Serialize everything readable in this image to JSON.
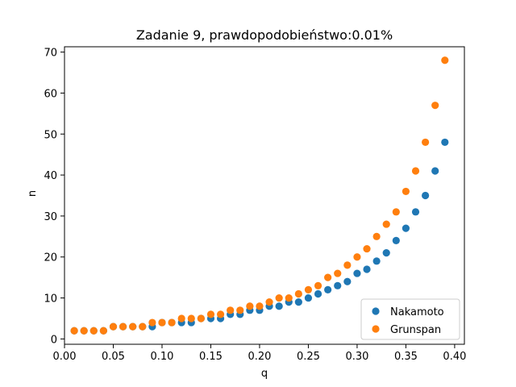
{
  "chart_data": {
    "type": "scatter",
    "title": "Zadanie 9, prawdopodobieństwo:0.01%",
    "xlabel": "q",
    "ylabel": "n",
    "xlim": [
      -0.0,
      0.41
    ],
    "ylim": [
      -1.3,
      71.3
    ],
    "xticks": [
      0.0,
      0.05,
      0.1,
      0.15,
      0.2,
      0.25,
      0.3,
      0.35,
      0.4
    ],
    "xtick_labels": [
      "0.00",
      "0.05",
      "0.10",
      "0.15",
      "0.20",
      "0.25",
      "0.30",
      "0.35",
      "0.40"
    ],
    "yticks": [
      0,
      10,
      20,
      30,
      40,
      50,
      60,
      70
    ],
    "ytick_labels": [
      "0",
      "10",
      "20",
      "30",
      "40",
      "50",
      "60",
      "70"
    ],
    "grid": false,
    "legend": "lower-right",
    "x": [
      0.01,
      0.02,
      0.03,
      0.04,
      0.05,
      0.06,
      0.07,
      0.08,
      0.09,
      0.1,
      0.11,
      0.12,
      0.13,
      0.14,
      0.15,
      0.16,
      0.17,
      0.18,
      0.19,
      0.2,
      0.21,
      0.22,
      0.23,
      0.24,
      0.25,
      0.26,
      0.27,
      0.28,
      0.29,
      0.3,
      0.31,
      0.32,
      0.33,
      0.34,
      0.35,
      0.36,
      0.37,
      0.38,
      0.39
    ],
    "series": [
      {
        "name": "Nakamoto",
        "color": "#1f77b4",
        "values": [
          2,
          2,
          2,
          2,
          3,
          3,
          3,
          3,
          3,
          4,
          4,
          4,
          4,
          5,
          5,
          5,
          6,
          6,
          7,
          7,
          8,
          8,
          9,
          9,
          10,
          11,
          12,
          13,
          14,
          16,
          17,
          19,
          21,
          24,
          27,
          31,
          35,
          41,
          48
        ]
      },
      {
        "name": "Grunspan",
        "color": "#ff7f0e",
        "values": [
          2,
          2,
          2,
          2,
          3,
          3,
          3,
          3,
          4,
          4,
          4,
          5,
          5,
          5,
          6,
          6,
          7,
          7,
          8,
          8,
          9,
          10,
          10,
          11,
          12,
          13,
          15,
          16,
          18,
          20,
          22,
          25,
          28,
          31,
          36,
          41,
          48,
          57,
          68
        ]
      }
    ]
  }
}
